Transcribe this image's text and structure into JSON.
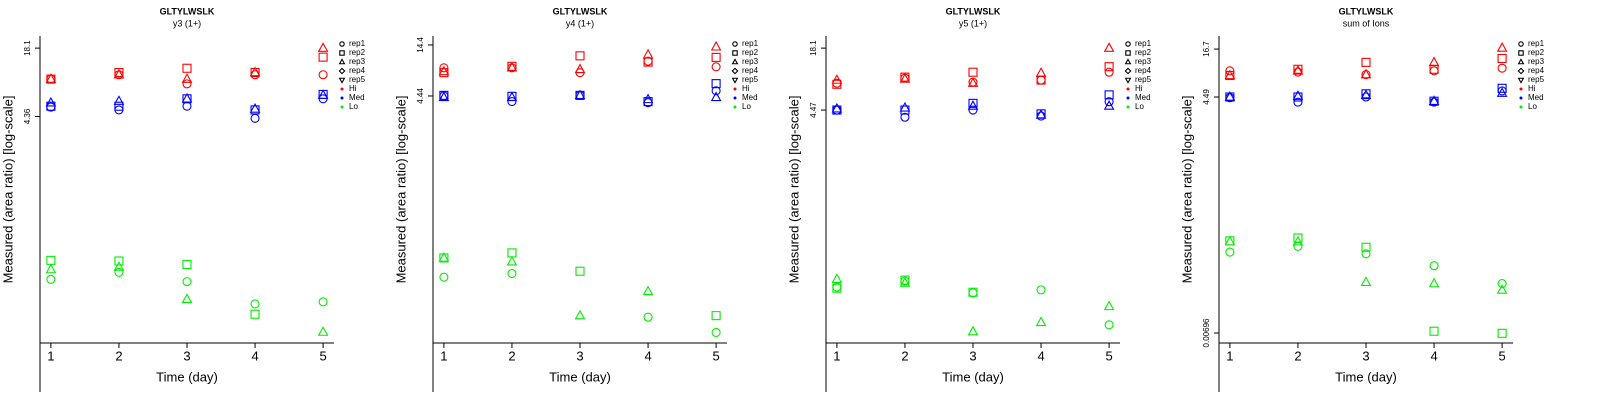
{
  "chart_data": [
    {
      "type": "scatter",
      "title": "GLTYLWSLK",
      "subtitle": "y3 (1+)",
      "x_label": "Time (day)",
      "y_label": "Measured (area ratio) [log-scale]",
      "log_y": true,
      "x": [
        1,
        2,
        3,
        4,
        5
      ],
      "xlim": [
        0.84,
        5.16
      ],
      "xticks": [
        1,
        2,
        3,
        4,
        5
      ],
      "ylim": [
        0.039,
        23.3
      ],
      "yticks": [
        4.36,
        18.1
      ],
      "reps": [
        {
          "name": "rep1",
          "marker": "circle"
        },
        {
          "name": "rep2",
          "marker": "square"
        },
        {
          "name": "rep3",
          "marker": "triangle"
        },
        {
          "name": "rep4",
          "marker": "diamond"
        },
        {
          "name": "rep5",
          "marker": "triangle-down"
        }
      ],
      "groups": [
        {
          "name": "Hi",
          "color": "#ff0000",
          "values": [
            [
              9.5,
              10.4,
              8.6,
              10.4,
              10.4
            ],
            [
              9.5,
              10.9,
              11.9,
              10.9,
              15
            ],
            [
              9.5,
              10.4,
              9.5,
              10.9,
              18.1
            ],
            [
              null,
              null,
              null,
              null,
              null
            ],
            [
              null,
              null,
              null,
              null,
              null
            ]
          ]
        },
        {
          "name": "Med",
          "color": "#0000ff",
          "values": [
            [
              5.3,
              5.0,
              5.4,
              4.2,
              6.3
            ],
            [
              5.4,
              5.4,
              6.3,
              5.0,
              6.9
            ],
            [
              5.8,
              6.0,
              6.3,
              5.1,
              6.8
            ],
            [
              null,
              null,
              null,
              null,
              null
            ],
            [
              null,
              null,
              null,
              null,
              null
            ]
          ]
        },
        {
          "name": "Lo",
          "color": "#00ee00",
          "values": [
            [
              0.147,
              0.17,
              0.14,
              0.088,
              0.092
            ],
            [
              0.218,
              0.215,
              0.2,
              0.071,
              null
            ],
            [
              0.18,
              0.19,
              0.097,
              null,
              0.049
            ],
            [
              null,
              null,
              null,
              null,
              null
            ],
            [
              null,
              null,
              null,
              null,
              null
            ]
          ]
        }
      ]
    },
    {
      "type": "scatter",
      "title": "GLTYLWSLK",
      "subtitle": "y4 (1+)",
      "x_label": "Time (day)",
      "y_label": "Measured (area ratio) [log-scale]",
      "log_y": true,
      "x": [
        1,
        2,
        3,
        4,
        5
      ],
      "xlim": [
        0.84,
        5.16
      ],
      "xticks": [
        1,
        2,
        3,
        4,
        5
      ],
      "ylim": [
        0.0149,
        17.7
      ],
      "yticks": [
        4.44,
        14.4
      ],
      "reps": [
        {
          "name": "rep1",
          "marker": "circle"
        },
        {
          "name": "rep2",
          "marker": "square"
        },
        {
          "name": "rep3",
          "marker": "triangle"
        },
        {
          "name": "rep4",
          "marker": "diamond"
        },
        {
          "name": "rep5",
          "marker": "triangle-down"
        }
      ],
      "groups": [
        {
          "name": "Hi",
          "color": "#ff0000",
          "values": [
            [
              8.5,
              8.5,
              7.6,
              9.9,
              8.7
            ],
            [
              7.6,
              8.8,
              11.2,
              9.7,
              10.8
            ],
            [
              7.8,
              8.5,
              8.2,
              11.5,
              13.8
            ],
            [
              null,
              null,
              null,
              null,
              null
            ],
            [
              null,
              null,
              null,
              null,
              null
            ]
          ]
        },
        {
          "name": "Med",
          "color": "#0000ff",
          "values": [
            [
              4.44,
              3.9,
              4.5,
              3.8,
              5.0
            ],
            [
              4.5,
              4.4,
              4.5,
              3.9,
              5.9
            ],
            [
              4.3,
              4.3,
              4.5,
              4.1,
              4.3
            ],
            [
              null,
              null,
              null,
              null,
              null
            ],
            [
              null,
              null,
              null,
              null,
              null
            ]
          ]
        },
        {
          "name": "Lo",
          "color": "#00ee00",
          "values": [
            [
              0.068,
              0.074,
              null,
              0.027,
              0.019
            ],
            [
              0.106,
              0.119,
              0.078,
              null,
              0.028
            ],
            [
              0.106,
              0.097,
              0.028,
              0.049,
              null
            ],
            [
              null,
              null,
              null,
              null,
              null
            ],
            [
              null,
              null,
              null,
              null,
              null
            ]
          ]
        }
      ]
    },
    {
      "type": "scatter",
      "title": "GLTYLWSLK",
      "subtitle": "y5 (1+)",
      "x_label": "Time (day)",
      "y_label": "Measured (area ratio) [log-scale]",
      "log_y": true,
      "x": [
        1,
        2,
        3,
        4,
        5
      ],
      "xlim": [
        0.84,
        5.16
      ],
      "xticks": [
        1,
        2,
        3,
        4,
        5
      ],
      "ylim": [
        0.0232,
        23.8
      ],
      "yticks": [
        4.47,
        18.1
      ],
      "reps": [
        {
          "name": "rep1",
          "marker": "circle"
        },
        {
          "name": "rep2",
          "marker": "square"
        },
        {
          "name": "rep3",
          "marker": "triangle"
        },
        {
          "name": "rep4",
          "marker": "diamond"
        },
        {
          "name": "rep5",
          "marker": "triangle-down"
        }
      ],
      "groups": [
        {
          "name": "Hi",
          "color": "#ff0000",
          "values": [
            [
              8.2,
              9.2,
              8.4,
              8.8,
              10.5
            ],
            [
              8.0,
              9.4,
              10.5,
              8.8,
              11.9
            ],
            [
              8.8,
              9.0,
              8.2,
              10.3,
              18.1
            ],
            [
              null,
              null,
              null,
              null,
              null
            ],
            [
              null,
              null,
              null,
              null,
              null
            ]
          ]
        },
        {
          "name": "Med",
          "color": "#0000ff",
          "values": [
            [
              4.47,
              3.8,
              4.47,
              3.9,
              5.4
            ],
            [
              4.47,
              4.47,
              5.2,
              4.1,
              6.3
            ],
            [
              4.6,
              4.7,
              4.9,
              4.0,
              4.9
            ],
            [
              null,
              null,
              null,
              null,
              null
            ],
            [
              null,
              null,
              null,
              null,
              null
            ]
          ]
        },
        {
          "name": "Lo",
          "color": "#00ee00",
          "values": [
            [
              0.082,
              0.094,
              0.072,
              0.077,
              0.035
            ],
            [
              0.08,
              0.096,
              0.073,
              null,
              null
            ],
            [
              0.098,
              0.09,
              0.03,
              0.037,
              0.053
            ],
            [
              null,
              null,
              null,
              null,
              null
            ],
            [
              null,
              null,
              null,
              null,
              null
            ]
          ]
        }
      ]
    },
    {
      "type": "scatter",
      "title": "GLTYLWSLK",
      "subtitle": "sum of Ions",
      "x_label": "Time (day)",
      "y_label": "Measured (area ratio) [log-scale]",
      "log_y": true,
      "x": [
        1,
        2,
        3,
        4,
        5
      ],
      "xlim": [
        0.84,
        5.16
      ],
      "xticks": [
        1,
        2,
        3,
        4,
        5
      ],
      "ylim": [
        0.00529,
        23.9
      ],
      "yticks": [
        0.00696,
        4.49,
        16.7
      ],
      "reps": [
        {
          "name": "rep1",
          "marker": "circle"
        },
        {
          "name": "rep2",
          "marker": "square"
        },
        {
          "name": "rep3",
          "marker": "triangle"
        },
        {
          "name": "rep4",
          "marker": "diamond"
        },
        {
          "name": "rep5",
          "marker": "triangle-down"
        }
      ],
      "groups": [
        {
          "name": "Hi",
          "color": "#ff0000",
          "values": [
            [
              9.2,
              8.9,
              8.3,
              9.2,
              9.9
            ],
            [
              8.1,
              9.6,
              11.6,
              9.6,
              12.9
            ],
            [
              8.1,
              9.2,
              8.3,
              11.6,
              17.2
            ],
            [
              null,
              null,
              null,
              null,
              null
            ],
            [
              null,
              null,
              null,
              null,
              null
            ]
          ]
        },
        {
          "name": "Med",
          "color": "#0000ff",
          "values": [
            [
              4.4,
              3.9,
              4.49,
              3.9,
              5.3
            ],
            [
              4.49,
              4.49,
              4.9,
              4.0,
              5.7
            ],
            [
              4.49,
              4.6,
              4.7,
              4.0,
              5.0
            ],
            [
              null,
              null,
              null,
              null,
              null
            ],
            [
              null,
              null,
              null,
              null,
              null
            ]
          ]
        },
        {
          "name": "Lo",
          "color": "#00ee00",
          "values": [
            [
              0.064,
              0.075,
              0.061,
              0.044,
              0.027
            ],
            [
              0.087,
              0.094,
              0.073,
              0.0073,
              0.0069
            ],
            [
              0.085,
              0.085,
              0.028,
              0.027,
              0.0226
            ],
            [
              null,
              null,
              null,
              null,
              null
            ],
            [
              null,
              null,
              null,
              null,
              null
            ]
          ]
        }
      ]
    }
  ]
}
